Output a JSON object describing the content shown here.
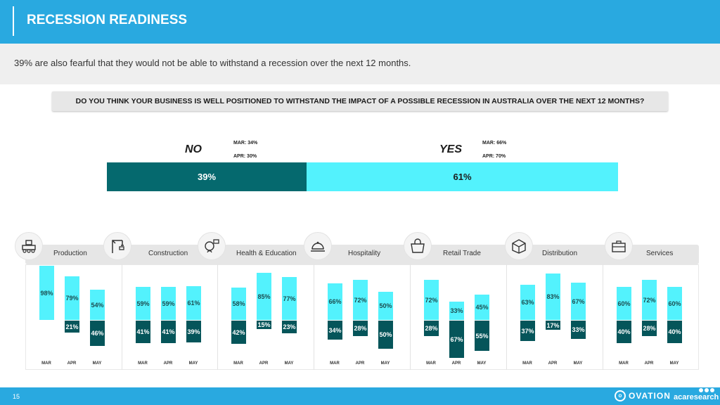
{
  "header": {
    "title": "RECESSION READINESS"
  },
  "subtitle": "39% are also fearful that they would not be able to withstand a recession over the next 12 months.",
  "question": "DO YOU THINK YOUR BUSINESS IS WELL POSITIONED TO WITHSTAND THE IMPACT OF A POSSIBLE RECESSION IN AUSTRALIA OVER THE NEXT 12 MONTHS?",
  "summary": {
    "no_label": "NO",
    "yes_label": "YES",
    "no_mar": "MAR: 34%",
    "no_apr": "APR: 30%",
    "yes_mar": "MAR: 66%",
    "yes_apr": "APR: 70%",
    "no_value": "39%",
    "yes_value": "61%"
  },
  "colors": {
    "header": "#29a9e0",
    "no": "#05555a",
    "yes": "#53f2fd"
  },
  "chart_data": {
    "type": "bar",
    "months": [
      "MAR",
      "APR",
      "MAY"
    ],
    "sectors": [
      {
        "name": "Production",
        "icon": "production-robot-icon",
        "yes": [
          98,
          79,
          54
        ],
        "no": [
          null,
          21,
          46
        ]
      },
      {
        "name": "Construction",
        "icon": "construction-crane-icon",
        "yes": [
          59,
          59,
          61
        ],
        "no": [
          41,
          41,
          39
        ]
      },
      {
        "name": "Health & Education",
        "icon": "health-education-icon",
        "yes": [
          58,
          85,
          77
        ],
        "no": [
          42,
          15,
          23
        ]
      },
      {
        "name": "Hospitality",
        "icon": "hospitality-cloche-icon",
        "yes": [
          66,
          72,
          50
        ],
        "no": [
          34,
          28,
          50
        ]
      },
      {
        "name": "Retail Trade",
        "icon": "retail-shop-icon",
        "yes": [
          72,
          33,
          45
        ],
        "no": [
          28,
          67,
          55
        ]
      },
      {
        "name": "Distribution",
        "icon": "distribution-box-icon",
        "yes": [
          63,
          83,
          67
        ],
        "no": [
          37,
          17,
          33
        ]
      },
      {
        "name": "Services",
        "icon": "services-briefcase-icon",
        "yes": [
          60,
          72,
          60
        ],
        "no": [
          40,
          28,
          40
        ]
      }
    ]
  },
  "footer": {
    "page": "15",
    "brand1": "OVATION",
    "brand2": "acaresearch"
  }
}
